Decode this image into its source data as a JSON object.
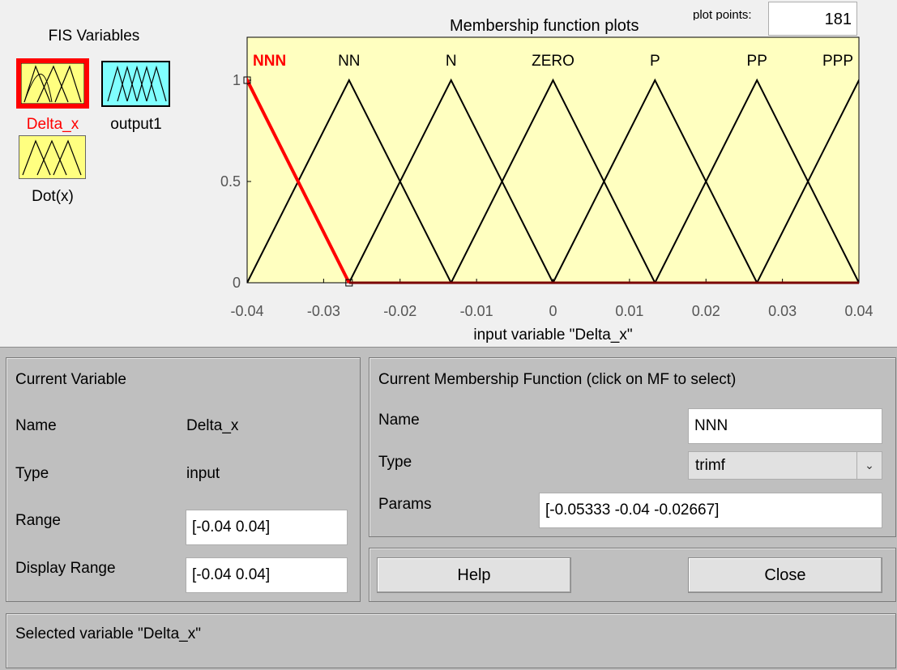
{
  "fis_panel": {
    "title": "FIS Variables",
    "variables": [
      {
        "name": "Delta_x",
        "kind": "input",
        "selected": true,
        "color": "#ffff80"
      },
      {
        "name": "output1",
        "kind": "output",
        "selected": false,
        "color": "#80ffff"
      },
      {
        "name": "Dot(x)",
        "kind": "input",
        "selected": false,
        "color": "#ffff80"
      }
    ]
  },
  "plot": {
    "title": "Membership function plots",
    "plot_points_label": "plot points:",
    "plot_points_value": "181",
    "xlabel": "input variable \"Delta_x\"",
    "selected_color": "#ff0000",
    "background": "#ffffc0"
  },
  "chart_data": {
    "type": "line",
    "title": "Membership function plots",
    "xlabel": "input variable \"Delta_x\"",
    "ylabel": "",
    "xlim": [
      -0.04,
      0.04
    ],
    "ylim": [
      0,
      1
    ],
    "x_ticks": [
      "-0.04",
      "-0.03",
      "-0.02",
      "-0.01",
      "0",
      "0.01",
      "0.02",
      "0.03",
      "0.04"
    ],
    "x_tick_values": [
      -0.04,
      -0.03,
      -0.02,
      -0.01,
      0,
      0.01,
      0.02,
      0.03,
      0.04
    ],
    "y_ticks": [
      "0",
      "0.5",
      "1"
    ],
    "y_tick_values": [
      0,
      0.5,
      1
    ],
    "series": [
      {
        "name": "NNN",
        "x": [
          -0.05333,
          -0.04,
          -0.02667
        ],
        "y": [
          0,
          1,
          0
        ],
        "selected": true
      },
      {
        "name": "NN",
        "x": [
          -0.04,
          -0.02667,
          -0.01333
        ],
        "y": [
          0,
          1,
          0
        ]
      },
      {
        "name": "N",
        "x": [
          -0.02667,
          -0.01333,
          0
        ],
        "y": [
          0,
          1,
          0
        ]
      },
      {
        "name": "ZERO",
        "x": [
          -0.01333,
          0,
          0.01333
        ],
        "y": [
          0,
          1,
          0
        ]
      },
      {
        "name": "P",
        "x": [
          0,
          0.01333,
          0.02667
        ],
        "y": [
          0,
          1,
          0
        ]
      },
      {
        "name": "PP",
        "x": [
          0.01333,
          0.02667,
          0.04
        ],
        "y": [
          0,
          1,
          0
        ]
      },
      {
        "name": "PPP",
        "x": [
          0.02667,
          0.04,
          0.05333
        ],
        "y": [
          0,
          1,
          0
        ]
      }
    ]
  },
  "current_variable": {
    "header": "Current Variable",
    "name_label": "Name",
    "name_value": "Delta_x",
    "type_label": "Type",
    "type_value": "input",
    "range_label": "Range",
    "range_value": "[-0.04 0.04]",
    "display_range_label": "Display Range",
    "display_range_value": "[-0.04 0.04]"
  },
  "current_mf": {
    "header": "Current Membership Function (click on MF to select)",
    "name_label": "Name",
    "name_value": "NNN",
    "type_label": "Type",
    "type_value": "trimf",
    "params_label": "Params",
    "params_value": "[-0.05333 -0.04 -0.02667]"
  },
  "buttons": {
    "help": "Help",
    "close": "Close"
  },
  "status": "Selected variable \"Delta_x\""
}
